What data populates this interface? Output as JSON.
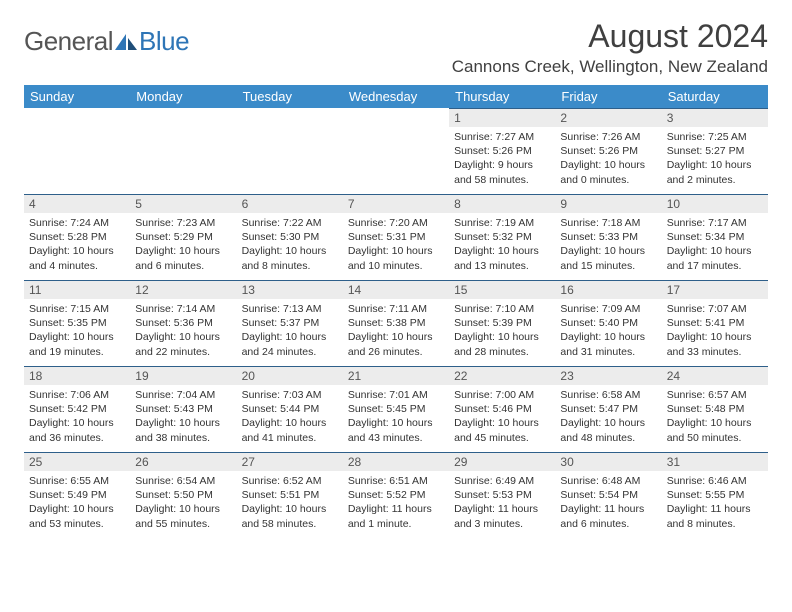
{
  "logo": {
    "text1": "General",
    "text2": "Blue"
  },
  "title": "August 2024",
  "location": "Cannons Creek, Wellington, New Zealand",
  "colors": {
    "header_bg": "#3b8bc9",
    "header_text": "#ffffff",
    "daynum_bg": "#ececec",
    "border": "#2e5f8a",
    "logo_blue": "#2e75b6"
  },
  "day_names": [
    "Sunday",
    "Monday",
    "Tuesday",
    "Wednesday",
    "Thursday",
    "Friday",
    "Saturday"
  ],
  "weeks": [
    [
      {
        "n": "",
        "sr": "",
        "ss": "",
        "dl": ""
      },
      {
        "n": "",
        "sr": "",
        "ss": "",
        "dl": ""
      },
      {
        "n": "",
        "sr": "",
        "ss": "",
        "dl": ""
      },
      {
        "n": "",
        "sr": "",
        "ss": "",
        "dl": ""
      },
      {
        "n": "1",
        "sr": "Sunrise: 7:27 AM",
        "ss": "Sunset: 5:26 PM",
        "dl": "Daylight: 9 hours and 58 minutes."
      },
      {
        "n": "2",
        "sr": "Sunrise: 7:26 AM",
        "ss": "Sunset: 5:26 PM",
        "dl": "Daylight: 10 hours and 0 minutes."
      },
      {
        "n": "3",
        "sr": "Sunrise: 7:25 AM",
        "ss": "Sunset: 5:27 PM",
        "dl": "Daylight: 10 hours and 2 minutes."
      }
    ],
    [
      {
        "n": "4",
        "sr": "Sunrise: 7:24 AM",
        "ss": "Sunset: 5:28 PM",
        "dl": "Daylight: 10 hours and 4 minutes."
      },
      {
        "n": "5",
        "sr": "Sunrise: 7:23 AM",
        "ss": "Sunset: 5:29 PM",
        "dl": "Daylight: 10 hours and 6 minutes."
      },
      {
        "n": "6",
        "sr": "Sunrise: 7:22 AM",
        "ss": "Sunset: 5:30 PM",
        "dl": "Daylight: 10 hours and 8 minutes."
      },
      {
        "n": "7",
        "sr": "Sunrise: 7:20 AM",
        "ss": "Sunset: 5:31 PM",
        "dl": "Daylight: 10 hours and 10 minutes."
      },
      {
        "n": "8",
        "sr": "Sunrise: 7:19 AM",
        "ss": "Sunset: 5:32 PM",
        "dl": "Daylight: 10 hours and 13 minutes."
      },
      {
        "n": "9",
        "sr": "Sunrise: 7:18 AM",
        "ss": "Sunset: 5:33 PM",
        "dl": "Daylight: 10 hours and 15 minutes."
      },
      {
        "n": "10",
        "sr": "Sunrise: 7:17 AM",
        "ss": "Sunset: 5:34 PM",
        "dl": "Daylight: 10 hours and 17 minutes."
      }
    ],
    [
      {
        "n": "11",
        "sr": "Sunrise: 7:15 AM",
        "ss": "Sunset: 5:35 PM",
        "dl": "Daylight: 10 hours and 19 minutes."
      },
      {
        "n": "12",
        "sr": "Sunrise: 7:14 AM",
        "ss": "Sunset: 5:36 PM",
        "dl": "Daylight: 10 hours and 22 minutes."
      },
      {
        "n": "13",
        "sr": "Sunrise: 7:13 AM",
        "ss": "Sunset: 5:37 PM",
        "dl": "Daylight: 10 hours and 24 minutes."
      },
      {
        "n": "14",
        "sr": "Sunrise: 7:11 AM",
        "ss": "Sunset: 5:38 PM",
        "dl": "Daylight: 10 hours and 26 minutes."
      },
      {
        "n": "15",
        "sr": "Sunrise: 7:10 AM",
        "ss": "Sunset: 5:39 PM",
        "dl": "Daylight: 10 hours and 28 minutes."
      },
      {
        "n": "16",
        "sr": "Sunrise: 7:09 AM",
        "ss": "Sunset: 5:40 PM",
        "dl": "Daylight: 10 hours and 31 minutes."
      },
      {
        "n": "17",
        "sr": "Sunrise: 7:07 AM",
        "ss": "Sunset: 5:41 PM",
        "dl": "Daylight: 10 hours and 33 minutes."
      }
    ],
    [
      {
        "n": "18",
        "sr": "Sunrise: 7:06 AM",
        "ss": "Sunset: 5:42 PM",
        "dl": "Daylight: 10 hours and 36 minutes."
      },
      {
        "n": "19",
        "sr": "Sunrise: 7:04 AM",
        "ss": "Sunset: 5:43 PM",
        "dl": "Daylight: 10 hours and 38 minutes."
      },
      {
        "n": "20",
        "sr": "Sunrise: 7:03 AM",
        "ss": "Sunset: 5:44 PM",
        "dl": "Daylight: 10 hours and 41 minutes."
      },
      {
        "n": "21",
        "sr": "Sunrise: 7:01 AM",
        "ss": "Sunset: 5:45 PM",
        "dl": "Daylight: 10 hours and 43 minutes."
      },
      {
        "n": "22",
        "sr": "Sunrise: 7:00 AM",
        "ss": "Sunset: 5:46 PM",
        "dl": "Daylight: 10 hours and 45 minutes."
      },
      {
        "n": "23",
        "sr": "Sunrise: 6:58 AM",
        "ss": "Sunset: 5:47 PM",
        "dl": "Daylight: 10 hours and 48 minutes."
      },
      {
        "n": "24",
        "sr": "Sunrise: 6:57 AM",
        "ss": "Sunset: 5:48 PM",
        "dl": "Daylight: 10 hours and 50 minutes."
      }
    ],
    [
      {
        "n": "25",
        "sr": "Sunrise: 6:55 AM",
        "ss": "Sunset: 5:49 PM",
        "dl": "Daylight: 10 hours and 53 minutes."
      },
      {
        "n": "26",
        "sr": "Sunrise: 6:54 AM",
        "ss": "Sunset: 5:50 PM",
        "dl": "Daylight: 10 hours and 55 minutes."
      },
      {
        "n": "27",
        "sr": "Sunrise: 6:52 AM",
        "ss": "Sunset: 5:51 PM",
        "dl": "Daylight: 10 hours and 58 minutes."
      },
      {
        "n": "28",
        "sr": "Sunrise: 6:51 AM",
        "ss": "Sunset: 5:52 PM",
        "dl": "Daylight: 11 hours and 1 minute."
      },
      {
        "n": "29",
        "sr": "Sunrise: 6:49 AM",
        "ss": "Sunset: 5:53 PM",
        "dl": "Daylight: 11 hours and 3 minutes."
      },
      {
        "n": "30",
        "sr": "Sunrise: 6:48 AM",
        "ss": "Sunset: 5:54 PM",
        "dl": "Daylight: 11 hours and 6 minutes."
      },
      {
        "n": "31",
        "sr": "Sunrise: 6:46 AM",
        "ss": "Sunset: 5:55 PM",
        "dl": "Daylight: 11 hours and 8 minutes."
      }
    ]
  ]
}
